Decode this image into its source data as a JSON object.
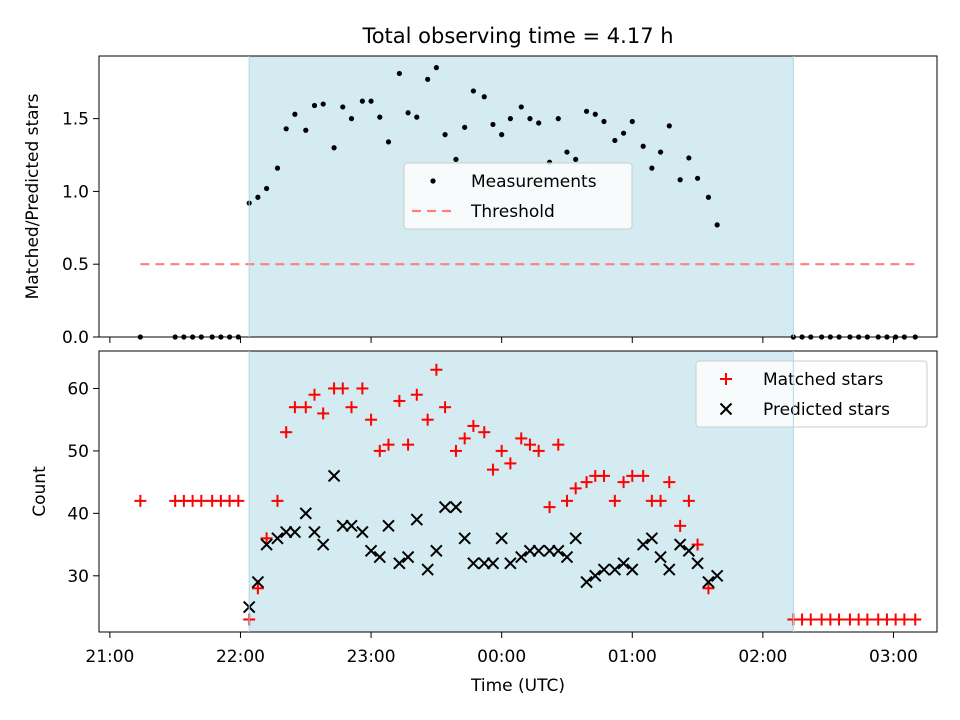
{
  "figure": {
    "title": "Total observing time = 4.17 h",
    "xlabel": "Time (UTC)",
    "span_color": "#d4ebf1"
  },
  "chart_data": [
    {
      "type": "scatter",
      "panel": "top",
      "ylabel": "Matched/Predicted stars",
      "xlim_minutes": [
        -5,
        380
      ],
      "ylim": [
        0,
        1.93
      ],
      "yticks": [
        0.0,
        0.5,
        1.0,
        1.5
      ],
      "ytick_labels": [
        "0.0",
        "0.5",
        "1.0",
        "1.5"
      ],
      "grid": false,
      "legend_position": "center",
      "observing_span": [
        "22:04",
        "02:14"
      ],
      "threshold": {
        "name": "Threshold",
        "value": 0.5,
        "from": "21:14",
        "to": "03:10",
        "color": "#ff7f7f"
      },
      "series": [
        {
          "name": "Measurements",
          "color": "#000000",
          "marker": "dot",
          "points": [
            {
              "t": "21:14",
              "y": 0
            },
            {
              "t": "21:30",
              "y": 0
            },
            {
              "t": "21:34",
              "y": 0
            },
            {
              "t": "21:38",
              "y": 0
            },
            {
              "t": "21:42",
              "y": 0
            },
            {
              "t": "21:47",
              "y": 0
            },
            {
              "t": "21:51",
              "y": 0
            },
            {
              "t": "21:55",
              "y": 0
            },
            {
              "t": "21:59",
              "y": 0
            },
            {
              "t": "22:04",
              "y": 0.92
            },
            {
              "t": "22:08",
              "y": 0.96
            },
            {
              "t": "22:12",
              "y": 1.02
            },
            {
              "t": "22:17",
              "y": 1.16
            },
            {
              "t": "22:21",
              "y": 1.43
            },
            {
              "t": "22:25",
              "y": 1.53
            },
            {
              "t": "22:30",
              "y": 1.42
            },
            {
              "t": "22:34",
              "y": 1.59
            },
            {
              "t": "22:38",
              "y": 1.6
            },
            {
              "t": "22:43",
              "y": 1.3
            },
            {
              "t": "22:47",
              "y": 1.58
            },
            {
              "t": "22:51",
              "y": 1.5
            },
            {
              "t": "22:56",
              "y": 1.62
            },
            {
              "t": "23:00",
              "y": 1.62
            },
            {
              "t": "23:04",
              "y": 1.51
            },
            {
              "t": "23:08",
              "y": 1.34
            },
            {
              "t": "23:13",
              "y": 1.81
            },
            {
              "t": "23:17",
              "y": 1.54
            },
            {
              "t": "23:21",
              "y": 1.51
            },
            {
              "t": "23:26",
              "y": 1.77
            },
            {
              "t": "23:30",
              "y": 1.85
            },
            {
              "t": "23:34",
              "y": 1.39
            },
            {
              "t": "23:39",
              "y": 1.22
            },
            {
              "t": "23:43",
              "y": 1.44
            },
            {
              "t": "23:47",
              "y": 1.69
            },
            {
              "t": "23:52",
              "y": 1.65
            },
            {
              "t": "23:56",
              "y": 1.46
            },
            {
              "t": "00:00",
              "y": 1.39
            },
            {
              "t": "00:04",
              "y": 1.5
            },
            {
              "t": "00:09",
              "y": 1.58
            },
            {
              "t": "00:13",
              "y": 1.5
            },
            {
              "t": "00:17",
              "y": 1.47
            },
            {
              "t": "00:22",
              "y": 1.2
            },
            {
              "t": "00:26",
              "y": 1.5
            },
            {
              "t": "00:30",
              "y": 1.27
            },
            {
              "t": "00:34",
              "y": 1.22
            },
            {
              "t": "00:39",
              "y": 1.55
            },
            {
              "t": "00:43",
              "y": 1.53
            },
            {
              "t": "00:47",
              "y": 1.48
            },
            {
              "t": "00:52",
              "y": 1.35
            },
            {
              "t": "00:56",
              "y": 1.4
            },
            {
              "t": "01:00",
              "y": 1.48
            },
            {
              "t": "01:05",
              "y": 1.31
            },
            {
              "t": "01:09",
              "y": 1.16
            },
            {
              "t": "01:13",
              "y": 1.27
            },
            {
              "t": "01:17",
              "y": 1.45
            },
            {
              "t": "01:22",
              "y": 1.08
            },
            {
              "t": "01:26",
              "y": 1.23
            },
            {
              "t": "01:30",
              "y": 1.09
            },
            {
              "t": "01:35",
              "y": 0.96
            },
            {
              "t": "01:39",
              "y": 0.77
            },
            {
              "t": "02:14",
              "y": 0
            },
            {
              "t": "02:18",
              "y": 0
            },
            {
              "t": "02:22",
              "y": 0
            },
            {
              "t": "02:27",
              "y": 0
            },
            {
              "t": "02:31",
              "y": 0
            },
            {
              "t": "02:35",
              "y": 0
            },
            {
              "t": "02:40",
              "y": 0
            },
            {
              "t": "02:44",
              "y": 0
            },
            {
              "t": "02:48",
              "y": 0
            },
            {
              "t": "02:53",
              "y": 0
            },
            {
              "t": "02:57",
              "y": 0
            },
            {
              "t": "03:01",
              "y": 0
            },
            {
              "t": "03:05",
              "y": 0
            },
            {
              "t": "03:10",
              "y": 0
            }
          ]
        }
      ]
    },
    {
      "type": "scatter",
      "panel": "bottom",
      "ylabel": "Count",
      "xlim_minutes": [
        -5,
        380
      ],
      "ylim": [
        21,
        66
      ],
      "yticks": [
        30,
        40,
        50,
        60
      ],
      "ytick_labels": [
        "30",
        "40",
        "50",
        "60"
      ],
      "xtick_labels": [
        "21:00",
        "22:00",
        "23:00",
        "00:00",
        "01:00",
        "02:00",
        "03:00"
      ],
      "grid": false,
      "legend_position": "upper right",
      "observing_span": [
        "22:04",
        "02:14"
      ],
      "series": [
        {
          "name": "Matched stars",
          "color": "#ff0000",
          "marker": "plus",
          "points": [
            {
              "t": "21:14",
              "y": 42
            },
            {
              "t": "21:30",
              "y": 42
            },
            {
              "t": "21:34",
              "y": 42
            },
            {
              "t": "21:38",
              "y": 42
            },
            {
              "t": "21:42",
              "y": 42
            },
            {
              "t": "21:47",
              "y": 42
            },
            {
              "t": "21:51",
              "y": 42
            },
            {
              "t": "21:55",
              "y": 42
            },
            {
              "t": "21:59",
              "y": 42
            },
            {
              "t": "22:04",
              "y": 23
            },
            {
              "t": "22:08",
              "y": 28
            },
            {
              "t": "22:12",
              "y": 36
            },
            {
              "t": "22:17",
              "y": 42
            },
            {
              "t": "22:21",
              "y": 53
            },
            {
              "t": "22:25",
              "y": 57
            },
            {
              "t": "22:30",
              "y": 57
            },
            {
              "t": "22:34",
              "y": 59
            },
            {
              "t": "22:38",
              "y": 56
            },
            {
              "t": "22:43",
              "y": 60
            },
            {
              "t": "22:47",
              "y": 60
            },
            {
              "t": "22:51",
              "y": 57
            },
            {
              "t": "22:56",
              "y": 60
            },
            {
              "t": "23:00",
              "y": 55
            },
            {
              "t": "23:04",
              "y": 50
            },
            {
              "t": "23:08",
              "y": 51
            },
            {
              "t": "23:13",
              "y": 58
            },
            {
              "t": "23:17",
              "y": 51
            },
            {
              "t": "23:21",
              "y": 59
            },
            {
              "t": "23:26",
              "y": 55
            },
            {
              "t": "23:30",
              "y": 63
            },
            {
              "t": "23:34",
              "y": 57
            },
            {
              "t": "23:39",
              "y": 50
            },
            {
              "t": "23:43",
              "y": 52
            },
            {
              "t": "23:47",
              "y": 54
            },
            {
              "t": "23:52",
              "y": 53
            },
            {
              "t": "23:56",
              "y": 47
            },
            {
              "t": "00:00",
              "y": 50
            },
            {
              "t": "00:04",
              "y": 48
            },
            {
              "t": "00:09",
              "y": 52
            },
            {
              "t": "00:13",
              "y": 51
            },
            {
              "t": "00:17",
              "y": 50
            },
            {
              "t": "00:22",
              "y": 41
            },
            {
              "t": "00:26",
              "y": 51
            },
            {
              "t": "00:30",
              "y": 42
            },
            {
              "t": "00:34",
              "y": 44
            },
            {
              "t": "00:39",
              "y": 45
            },
            {
              "t": "00:43",
              "y": 46
            },
            {
              "t": "00:47",
              "y": 46
            },
            {
              "t": "00:52",
              "y": 42
            },
            {
              "t": "00:56",
              "y": 45
            },
            {
              "t": "01:00",
              "y": 46
            },
            {
              "t": "01:05",
              "y": 46
            },
            {
              "t": "01:09",
              "y": 42
            },
            {
              "t": "01:13",
              "y": 42
            },
            {
              "t": "01:17",
              "y": 45
            },
            {
              "t": "01:22",
              "y": 38
            },
            {
              "t": "01:26",
              "y": 42
            },
            {
              "t": "01:30",
              "y": 35
            },
            {
              "t": "01:35",
              "y": 28
            },
            {
              "t": "02:14",
              "y": 23
            },
            {
              "t": "02:18",
              "y": 23
            },
            {
              "t": "02:22",
              "y": 23
            },
            {
              "t": "02:27",
              "y": 23
            },
            {
              "t": "02:31",
              "y": 23
            },
            {
              "t": "02:35",
              "y": 23
            },
            {
              "t": "02:40",
              "y": 23
            },
            {
              "t": "02:44",
              "y": 23
            },
            {
              "t": "02:48",
              "y": 23
            },
            {
              "t": "02:53",
              "y": 23
            },
            {
              "t": "02:57",
              "y": 23
            },
            {
              "t": "03:01",
              "y": 23
            },
            {
              "t": "03:05",
              "y": 23
            },
            {
              "t": "03:10",
              "y": 23
            }
          ]
        },
        {
          "name": "Predicted stars",
          "color": "#000000",
          "marker": "x",
          "points": [
            {
              "t": "22:04",
              "y": 25
            },
            {
              "t": "22:08",
              "y": 29
            },
            {
              "t": "22:12",
              "y": 35
            },
            {
              "t": "22:17",
              "y": 36
            },
            {
              "t": "22:21",
              "y": 37
            },
            {
              "t": "22:25",
              "y": 37
            },
            {
              "t": "22:30",
              "y": 40
            },
            {
              "t": "22:34",
              "y": 37
            },
            {
              "t": "22:38",
              "y": 35
            },
            {
              "t": "22:43",
              "y": 46
            },
            {
              "t": "22:47",
              "y": 38
            },
            {
              "t": "22:51",
              "y": 38
            },
            {
              "t": "22:56",
              "y": 37
            },
            {
              "t": "23:00",
              "y": 34
            },
            {
              "t": "23:04",
              "y": 33
            },
            {
              "t": "23:08",
              "y": 38
            },
            {
              "t": "23:13",
              "y": 32
            },
            {
              "t": "23:17",
              "y": 33
            },
            {
              "t": "23:21",
              "y": 39
            },
            {
              "t": "23:26",
              "y": 31
            },
            {
              "t": "23:30",
              "y": 34
            },
            {
              "t": "23:34",
              "y": 41
            },
            {
              "t": "23:39",
              "y": 41
            },
            {
              "t": "23:43",
              "y": 36
            },
            {
              "t": "23:47",
              "y": 32
            },
            {
              "t": "23:52",
              "y": 32
            },
            {
              "t": "23:56",
              "y": 32
            },
            {
              "t": "00:00",
              "y": 36
            },
            {
              "t": "00:04",
              "y": 32
            },
            {
              "t": "00:09",
              "y": 33
            },
            {
              "t": "00:13",
              "y": 34
            },
            {
              "t": "00:17",
              "y": 34
            },
            {
              "t": "00:22",
              "y": 34
            },
            {
              "t": "00:26",
              "y": 34
            },
            {
              "t": "00:30",
              "y": 33
            },
            {
              "t": "00:34",
              "y": 36
            },
            {
              "t": "00:39",
              "y": 29
            },
            {
              "t": "00:43",
              "y": 30
            },
            {
              "t": "00:47",
              "y": 31
            },
            {
              "t": "00:52",
              "y": 31
            },
            {
              "t": "00:56",
              "y": 32
            },
            {
              "t": "01:00",
              "y": 31
            },
            {
              "t": "01:05",
              "y": 35
            },
            {
              "t": "01:09",
              "y": 36
            },
            {
              "t": "01:13",
              "y": 33
            },
            {
              "t": "01:17",
              "y": 31
            },
            {
              "t": "01:22",
              "y": 35
            },
            {
              "t": "01:26",
              "y": 34
            },
            {
              "t": "01:30",
              "y": 32
            },
            {
              "t": "01:35",
              "y": 29
            },
            {
              "t": "01:39",
              "y": 30
            }
          ]
        }
      ]
    }
  ]
}
